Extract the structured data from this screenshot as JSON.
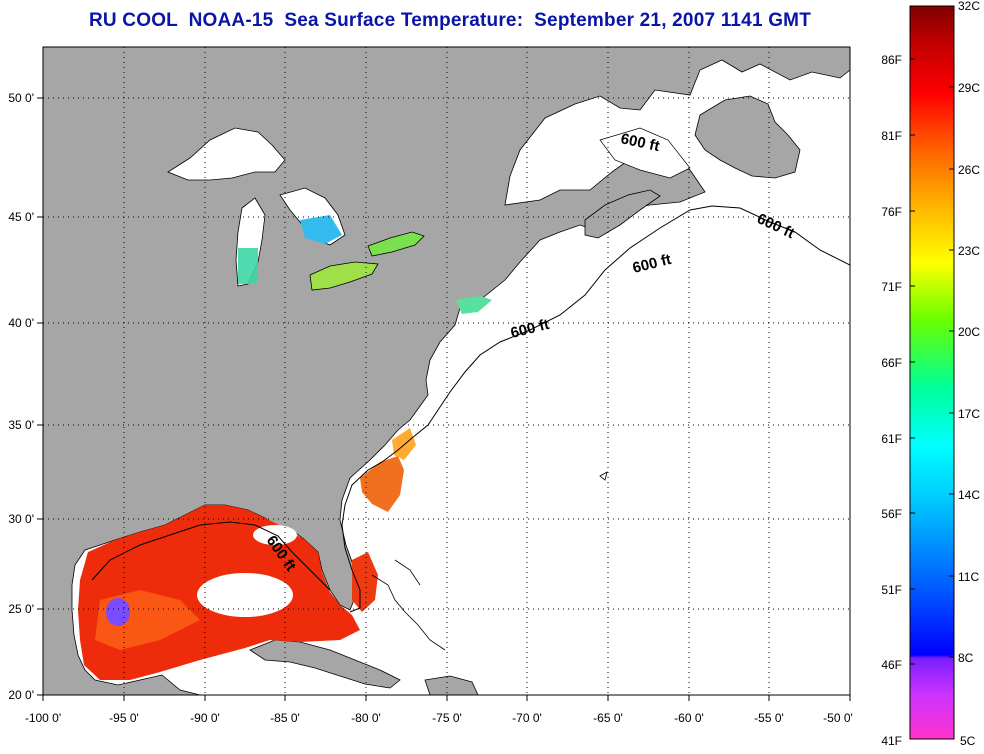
{
  "title": "RU COOL  NOAA-15  Sea Surface Temperature:  September 21, 2007 1141 GMT",
  "map": {
    "lon_range": [
      -100,
      -50
    ],
    "lat_range": [
      20,
      52.5
    ],
    "lon_ticks": [
      "-100 0'",
      "-95 0'",
      "-90 0'",
      "-85 0'",
      "-80 0'",
      "-75 0'",
      "-70 0'",
      "-65 0'",
      "-60 0'",
      "-55 0'",
      "-50 0'"
    ],
    "lat_ticks": [
      "50 0'",
      "45 0'",
      "40 0'",
      "35 0'",
      "30 0'",
      "25 0'",
      "20 0'"
    ],
    "grid": "dotted",
    "land_color": "#a6a6a6",
    "ocean_no_data_color": "#ffffff",
    "contour_label": "600 ft",
    "contour_labels": [
      "600 ft",
      "600 ft",
      "600 ft",
      "600 ft",
      "600 ft"
    ]
  },
  "colorbar": {
    "fahrenheit_labels": [
      "86F",
      "81F",
      "76F",
      "71F",
      "66F",
      "61F",
      "56F",
      "51F",
      "46F",
      "41F"
    ],
    "celsius_labels": [
      "32C",
      "29C",
      "26C",
      "23C",
      "20C",
      "17C",
      "14C",
      "11C",
      "8C",
      "5C"
    ],
    "range_c": [
      5,
      32
    ],
    "colors": [
      "#ff33cc",
      "#9933ff",
      "#0000ff",
      "#0080ff",
      "#00ffff",
      "#00ff80",
      "#80ff00",
      "#ffff00",
      "#ffb000",
      "#ff6000",
      "#ff0000",
      "#b00000",
      "#800000"
    ]
  }
}
